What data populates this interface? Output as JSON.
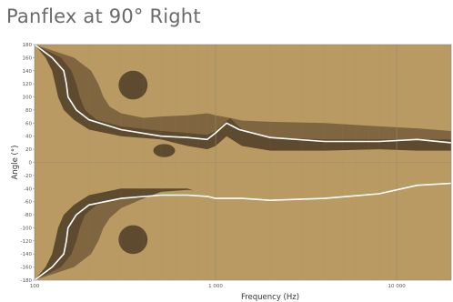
{
  "chart_data": {
    "type": "heatmap",
    "title": "Panflex at 90° Right",
    "xlabel": "Frequency (Hz)",
    "ylabel": "Angle (°)",
    "x_scale": "log",
    "xlim": [
      100,
      20000
    ],
    "ylim": [
      -180,
      180
    ],
    "x_tick_labels": [
      {
        "value": 100,
        "label": "100"
      },
      {
        "value": 1000,
        "label": "1 000"
      },
      {
        "value": 10000,
        "label": "10 000"
      }
    ],
    "y_ticks": [
      180,
      160,
      140,
      120,
      100,
      80,
      60,
      40,
      20,
      0,
      -20,
      -40,
      -60,
      -80,
      -100,
      -120,
      -140,
      -160,
      -180
    ],
    "grid": true,
    "colors": {
      "background": "#b89a62",
      "contour_dark": "#5e4a2e",
      "contour_mid": "#7f6640",
      "reference_line": "#ffffff",
      "grid": "#9a8a6a"
    },
    "series": [
      {
        "level": "outer",
        "upper": [
          [
            100,
            180
          ],
          [
            115,
            160
          ],
          [
            125,
            140
          ],
          [
            130,
            120
          ],
          [
            135,
            100
          ],
          [
            145,
            80
          ],
          [
            165,
            65
          ],
          [
            200,
            50
          ],
          [
            300,
            40
          ],
          [
            500,
            35
          ],
          [
            700,
            25
          ],
          [
            900,
            20
          ],
          [
            1000,
            25
          ],
          [
            1150,
            40
          ],
          [
            1400,
            25
          ],
          [
            2000,
            18
          ],
          [
            4000,
            18
          ],
          [
            8000,
            20
          ],
          [
            13000,
            18
          ],
          [
            20000,
            18
          ]
        ],
        "lower": [
          [
            100,
            -180
          ],
          [
            115,
            -160
          ],
          [
            125,
            -140
          ],
          [
            130,
            -120
          ],
          [
            135,
            -100
          ],
          [
            145,
            -80
          ],
          [
            165,
            -65
          ],
          [
            200,
            -50
          ],
          [
            300,
            -40
          ],
          [
            500,
            -40
          ],
          [
            700,
            -40
          ],
          [
            900,
            -50
          ],
          [
            1200,
            -70
          ],
          [
            2000,
            -75
          ],
          [
            4000,
            -75
          ],
          [
            8000,
            -65
          ],
          [
            13000,
            -50
          ],
          [
            20000,
            -45
          ]
        ]
      },
      {
        "level": "mid",
        "upper": [
          [
            100,
            180
          ],
          [
            140,
            160
          ],
          [
            160,
            140
          ],
          [
            170,
            120
          ],
          [
            178,
            100
          ],
          [
            190,
            80
          ],
          [
            220,
            65
          ],
          [
            300,
            55
          ],
          [
            500,
            48
          ],
          [
            700,
            45
          ],
          [
            900,
            42
          ],
          [
            1000,
            48
          ],
          [
            1200,
            68
          ],
          [
            1400,
            50
          ],
          [
            2000,
            38
          ],
          [
            4000,
            35
          ],
          [
            8000,
            35
          ],
          [
            13000,
            35
          ],
          [
            20000,
            35
          ]
        ],
        "lower": [
          [
            100,
            -180
          ],
          [
            140,
            -160
          ],
          [
            160,
            -140
          ],
          [
            170,
            -120
          ],
          [
            178,
            -100
          ],
          [
            190,
            -80
          ],
          [
            220,
            -65
          ],
          [
            300,
            -55
          ],
          [
            500,
            -55
          ],
          [
            700,
            -55
          ],
          [
            900,
            -58
          ],
          [
            1200,
            -62
          ],
          [
            2000,
            -65
          ],
          [
            4000,
            -62
          ],
          [
            8000,
            -52
          ],
          [
            13000,
            -40
          ],
          [
            20000,
            -35
          ]
        ]
      },
      {
        "level": "inner",
        "upper": [
          [
            100,
            180
          ],
          [
            165,
            160
          ],
          [
            205,
            140
          ],
          [
            225,
            120
          ],
          [
            240,
            100
          ],
          [
            260,
            85
          ],
          [
            300,
            75
          ],
          [
            400,
            68
          ],
          [
            500,
            70
          ],
          [
            700,
            72
          ],
          [
            900,
            75
          ],
          [
            1000,
            72
          ],
          [
            1200,
            68
          ],
          [
            1400,
            64
          ],
          [
            2000,
            62
          ],
          [
            4000,
            60
          ],
          [
            8000,
            55
          ],
          [
            13000,
            52
          ],
          [
            20000,
            48
          ]
        ],
        "lower": [
          [
            100,
            -180
          ],
          [
            165,
            -160
          ],
          [
            205,
            -140
          ],
          [
            225,
            -120
          ],
          [
            240,
            -100
          ],
          [
            260,
            -85
          ],
          [
            300,
            -70
          ],
          [
            400,
            -55
          ],
          [
            500,
            -45
          ],
          [
            700,
            -42
          ],
          [
            900,
            -45
          ],
          [
            1000,
            -48
          ],
          [
            1400,
            -52
          ],
          [
            2000,
            -52
          ],
          [
            4000,
            -50
          ],
          [
            8000,
            -45
          ],
          [
            13000,
            -35
          ],
          [
            20000,
            -28
          ]
        ]
      }
    ],
    "islands": [
      {
        "level": "outer",
        "center": [
          350,
          118
        ],
        "size": [
          0.08,
          22
        ]
      },
      {
        "level": "outer",
        "center": [
          350,
          -118
        ],
        "size": [
          0.08,
          22
        ]
      },
      {
        "level": "outer",
        "center": [
          520,
          18
        ],
        "size": [
          0.06,
          10
        ]
      }
    ],
    "reference_line": {
      "upper": [
        [
          100,
          180
        ],
        [
          125,
          160
        ],
        [
          145,
          140
        ],
        [
          150,
          120
        ],
        [
          153,
          100
        ],
        [
          170,
          80
        ],
        [
          200,
          65
        ],
        [
          300,
          50
        ],
        [
          500,
          40
        ],
        [
          700,
          38
        ],
        [
          900,
          35
        ],
        [
          1000,
          45
        ],
        [
          1150,
          60
        ],
        [
          1350,
          50
        ],
        [
          2000,
          38
        ],
        [
          4000,
          32
        ],
        [
          8000,
          32
        ],
        [
          13000,
          35
        ],
        [
          20000,
          30
        ]
      ],
      "lower": [
        [
          100,
          -180
        ],
        [
          125,
          -160
        ],
        [
          145,
          -140
        ],
        [
          150,
          -120
        ],
        [
          153,
          -100
        ],
        [
          170,
          -80
        ],
        [
          200,
          -65
        ],
        [
          300,
          -55
        ],
        [
          500,
          -50
        ],
        [
          700,
          -50
        ],
        [
          900,
          -52
        ],
        [
          1000,
          -55
        ],
        [
          1400,
          -55
        ],
        [
          2000,
          -58
        ],
        [
          4000,
          -55
        ],
        [
          8000,
          -48
        ],
        [
          13000,
          -35
        ],
        [
          20000,
          -32
        ]
      ]
    }
  }
}
